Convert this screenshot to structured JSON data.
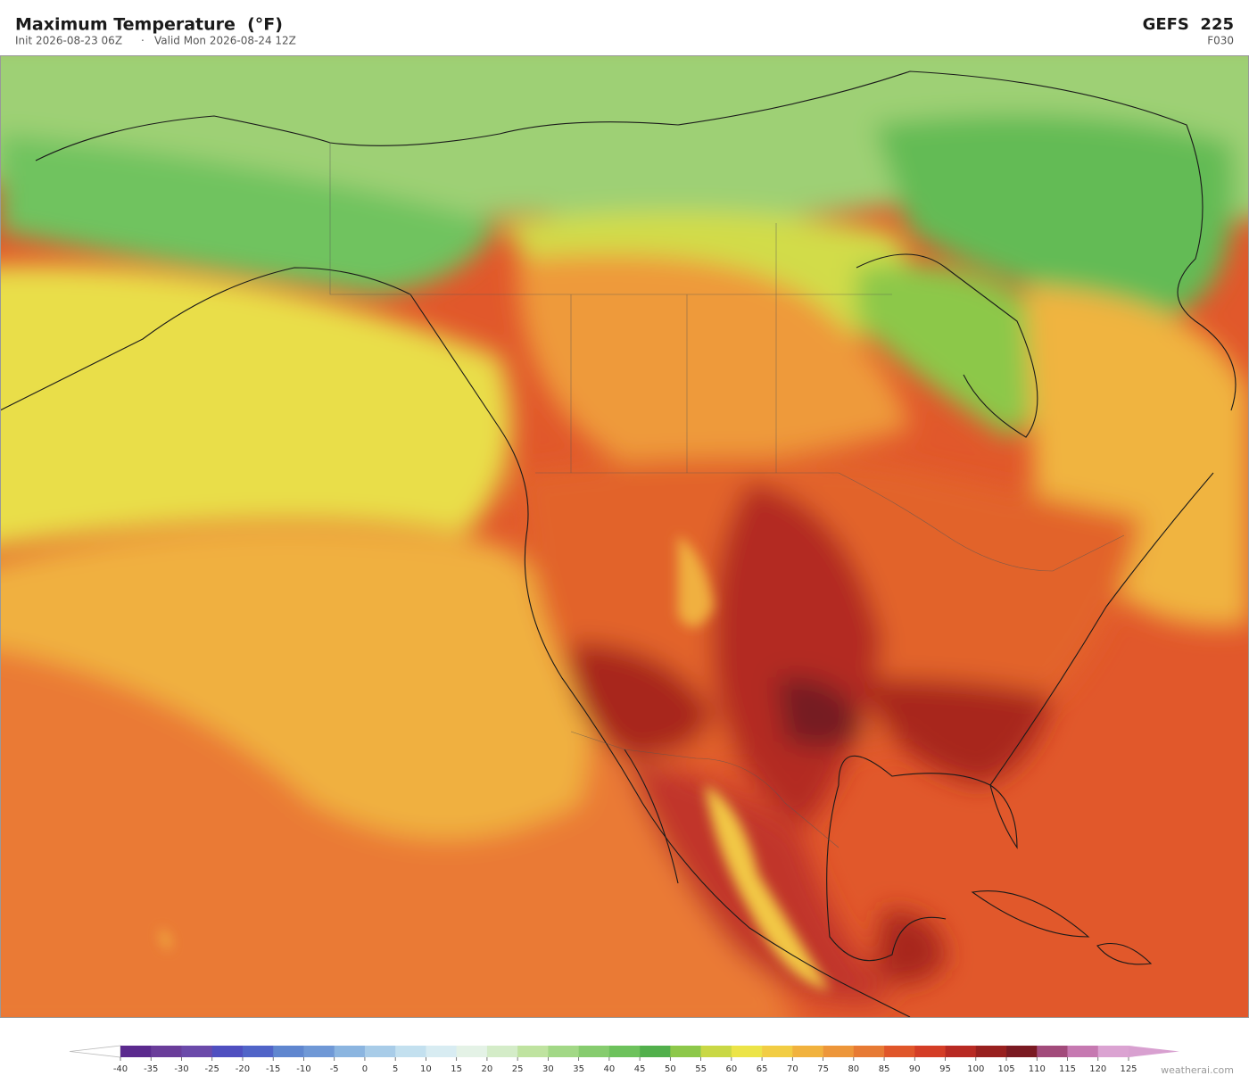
{
  "header": {
    "title": "Maximum Temperature  (°F)",
    "init": "Init 2026-08-23 06Z",
    "separator": "·",
    "valid": "Valid Mon 2026-08-24 12Z",
    "model": "GEFS  225",
    "forecast_hour": "F030"
  },
  "colorbar": {
    "ticks": [
      -40,
      -35,
      -30,
      -25,
      -20,
      -15,
      -10,
      -5,
      0,
      5,
      10,
      15,
      20,
      25,
      30,
      35,
      40,
      45,
      50,
      55,
      60,
      65,
      70,
      75,
      80,
      85,
      90,
      95,
      100,
      105,
      110,
      115,
      120,
      125
    ],
    "colors": [
      "#5b2a8e",
      "#6a3d9a",
      "#6b4aaa",
      "#4f4fc0",
      "#5064c8",
      "#5f86cf",
      "#6f98d6",
      "#8bb5e0",
      "#a8cce8",
      "#c3e0ef",
      "#d8ecf2",
      "#e4f2e6",
      "#d4ecc8",
      "#bfe3a0",
      "#a2d886",
      "#86cc6e",
      "#6dc25c",
      "#52b04c",
      "#8dc84a",
      "#c9d845",
      "#ece448",
      "#f2cd44",
      "#f1b23e",
      "#ed963a",
      "#e77a34",
      "#e0562a",
      "#d43d26",
      "#b82a23",
      "#98201f",
      "#7a1a22",
      "#a24b7b",
      "#c679b1",
      "#dba3d2"
    ],
    "under_color": "#ffffff",
    "over_color": "#d8a0d0"
  },
  "footer": {
    "credit": "weatherai.com"
  }
}
